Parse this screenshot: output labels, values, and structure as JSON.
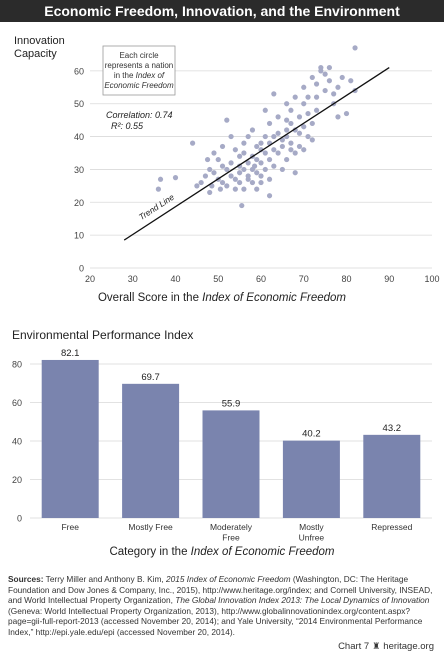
{
  "header": {
    "title": "Economic Freedom, Innovation, and the Environment"
  },
  "scatter_note": {
    "line1": "Each circle",
    "line2": "represents a nation",
    "line3": "in the",
    "line3_italic": "Index of",
    "line4_italic": "Economic Freedom"
  },
  "stats": {
    "correlation": "Correlation: 0.74",
    "r2": "R²: 0.55"
  },
  "trend_label": "Trend Line",
  "colors": {
    "points": "#a6aac6",
    "bars": "#7a84ae",
    "title_bg": "#2b2b2b"
  },
  "chart_data": [
    {
      "type": "scatter",
      "title": "",
      "ylabel": "Innovation Capacity",
      "xlabel_plain": "Overall Score in the ",
      "xlabel_italic": "Index of Economic Freedom",
      "xlim": [
        20,
        100
      ],
      "ylim": [
        0,
        70
      ],
      "x_ticks": [
        20,
        30,
        40,
        50,
        60,
        70,
        80,
        90,
        100
      ],
      "y_ticks": [
        0,
        10,
        20,
        30,
        40,
        50,
        60
      ],
      "correlation": 0.74,
      "r_squared": 0.55,
      "trend_line": [
        [
          28,
          8.5
        ],
        [
          90,
          61
        ]
      ],
      "points": [
        [
          36,
          24
        ],
        [
          36.5,
          27
        ],
        [
          40,
          27.5
        ],
        [
          44,
          38
        ],
        [
          45,
          25
        ],
        [
          46,
          26
        ],
        [
          47,
          28
        ],
        [
          47.5,
          33
        ],
        [
          48,
          30
        ],
        [
          48,
          23
        ],
        [
          48.5,
          25
        ],
        [
          49,
          35
        ],
        [
          49,
          29
        ],
        [
          50,
          27
        ],
        [
          50,
          33
        ],
        [
          50.5,
          24
        ],
        [
          51,
          31
        ],
        [
          51,
          26
        ],
        [
          51,
          37
        ],
        [
          52,
          45
        ],
        [
          52,
          30
        ],
        [
          52,
          25
        ],
        [
          53,
          28
        ],
        [
          53,
          32
        ],
        [
          53,
          40
        ],
        [
          54,
          27
        ],
        [
          54,
          24
        ],
        [
          54,
          36
        ],
        [
          55,
          29
        ],
        [
          55,
          34
        ],
        [
          55,
          31
        ],
        [
          55,
          26
        ],
        [
          55.5,
          19
        ],
        [
          56,
          38
        ],
        [
          56,
          30
        ],
        [
          56,
          35
        ],
        [
          56,
          24
        ],
        [
          57,
          32
        ],
        [
          57,
          28
        ],
        [
          57,
          40
        ],
        [
          57,
          27
        ],
        [
          58,
          34
        ],
        [
          58,
          30
        ],
        [
          58,
          26
        ],
        [
          58,
          42
        ],
        [
          58.5,
          31
        ],
        [
          59,
          33
        ],
        [
          59,
          37
        ],
        [
          59,
          29
        ],
        [
          59,
          24
        ],
        [
          60,
          36
        ],
        [
          60,
          32
        ],
        [
          60,
          28
        ],
        [
          60,
          38
        ],
        [
          60,
          26
        ],
        [
          61,
          35
        ],
        [
          61,
          30
        ],
        [
          61,
          48
        ],
        [
          61,
          40
        ],
        [
          62,
          33
        ],
        [
          62,
          44
        ],
        [
          62,
          38
        ],
        [
          62,
          27
        ],
        [
          62,
          22
        ],
        [
          63,
          53
        ],
        [
          63,
          40
        ],
        [
          63,
          36
        ],
        [
          63,
          31
        ],
        [
          64,
          46
        ],
        [
          64,
          35
        ],
        [
          64,
          41
        ],
        [
          65,
          39
        ],
        [
          65,
          30
        ],
        [
          65,
          37
        ],
        [
          66,
          45
        ],
        [
          66,
          42
        ],
        [
          66,
          33
        ],
        [
          66,
          50
        ],
        [
          66,
          40
        ],
        [
          67,
          44
        ],
        [
          67,
          38
        ],
        [
          67,
          36
        ],
        [
          67,
          48
        ],
        [
          68,
          42
        ],
        [
          68,
          29
        ],
        [
          68,
          35
        ],
        [
          68,
          52
        ],
        [
          69,
          41
        ],
        [
          69,
          46
        ],
        [
          69,
          37
        ],
        [
          70,
          50
        ],
        [
          70,
          43
        ],
        [
          70,
          36
        ],
        [
          70,
          55
        ],
        [
          71,
          47
        ],
        [
          71,
          40
        ],
        [
          71,
          52
        ],
        [
          72,
          58
        ],
        [
          72,
          44
        ],
        [
          72,
          39
        ],
        [
          73,
          56
        ],
        [
          73,
          48
        ],
        [
          73,
          52
        ],
        [
          74,
          61
        ],
        [
          74,
          60
        ],
        [
          75,
          54
        ],
        [
          75,
          59
        ],
        [
          76,
          61
        ],
        [
          76,
          57
        ],
        [
          77,
          50
        ],
        [
          77,
          53
        ],
        [
          78,
          46
        ],
        [
          78,
          55
        ],
        [
          79,
          58
        ],
        [
          80,
          47
        ],
        [
          81,
          57
        ],
        [
          82,
          54
        ],
        [
          82,
          67
        ]
      ]
    },
    {
      "type": "bar",
      "title": "Environmental Performance Index",
      "categories": [
        "Free",
        "Mostly Free",
        "Moderately Free",
        "Mostly Unfree",
        "Repressed"
      ],
      "category_lines": [
        [
          "Free"
        ],
        [
          "Mostly Free"
        ],
        [
          "Moderately",
          "Free"
        ],
        [
          "Mostly",
          "Unfree"
        ],
        [
          "Repressed"
        ]
      ],
      "values": [
        82.1,
        69.7,
        55.9,
        40.2,
        43.2
      ],
      "value_labels": [
        "82.1",
        "69.7",
        "55.9",
        "40.2",
        "43.2"
      ],
      "ylim": [
        0,
        80
      ],
      "y_ticks": [
        0,
        20,
        40,
        60,
        80
      ],
      "xlabel_plain": "Category in the ",
      "xlabel_italic": "Index of Economic Freedom"
    }
  ],
  "sources": {
    "label": "Sources:",
    "t1": " Terry Miller and Anthony B. Kim, ",
    "i1": "2015 Index of Economic Freedom",
    "t2": " (Washington, DC: The Heritage Foundation and Dow Jones & Company, Inc., 2015), http://www.heritage.org/index; and Cornell University, INSEAD, and World Intellectual Property Organization, ",
    "i2": "The Global Innovation Index 2013: The Local Dynamics of Innovation",
    "t3": " (Geneva: World Intellectual Property Organization, 2013), http://www.globalinnovationindex.org/content.aspx?page=gii-full-report-2013 (accessed November 20, 2014); and Yale University, “2014 Environmental Performance Index,” http://epi.yale.edu/epi (accessed November 20, 2014)."
  },
  "footer": {
    "chart_number": "Chart 7",
    "site": "heritage.org",
    "mark": "♜"
  }
}
